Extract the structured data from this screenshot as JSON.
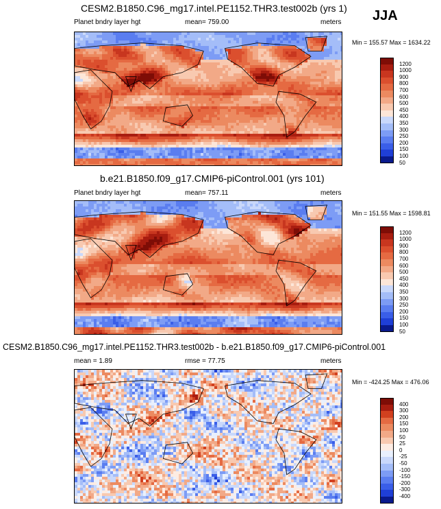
{
  "season": "JJA",
  "colors": {
    "abs_scale": [
      "#0a1a8c",
      "#1f3fd6",
      "#3a5ee8",
      "#5a7df0",
      "#7d9cf5",
      "#a4bdf8",
      "#c9d8fb",
      "#fde6d8",
      "#f8c9b0",
      "#f2a987",
      "#ec8a60",
      "#e56a42",
      "#db4f2e",
      "#c8361f",
      "#a81d10",
      "#7e0d06"
    ],
    "diff_scale": [
      "#0a1a8c",
      "#1f3fd6",
      "#3a5ee8",
      "#5a7df0",
      "#7d9cf5",
      "#a4bdf8",
      "#c9d8fb",
      "#e9f0fd",
      "#fdece3",
      "#f8c9b0",
      "#f2a987",
      "#ec8a60",
      "#e56a42",
      "#d2401f",
      "#a81d10",
      "#7e0d06"
    ],
    "land_outline": "#000000"
  },
  "chart_data": [
    {
      "type": "heatmap",
      "title": "CESM2.B1850.C96_mg17.intel.PE1152.THR3.test002b (yrs 1)",
      "variable": "Planet bndry layer hgt",
      "mean_text": "mean= 759.00",
      "units": "meters",
      "minmax_text": "Min = 155.57 Max = 1634.22",
      "min": 155.57,
      "max": 1634.22,
      "mean": 759.0,
      "colorbar_levels": [
        "1200",
        "1000",
        "900",
        "800",
        "700",
        "600",
        "500",
        "450",
        "400",
        "350",
        "300",
        "250",
        "200",
        "150",
        "100",
        "50"
      ]
    },
    {
      "type": "heatmap",
      "title": "b.e21.B1850.f09_g17.CMIP6-piControl.001 (yrs 101)",
      "variable": "Planet bndry layer hgt",
      "mean_text": "mean= 757.11",
      "units": "meters",
      "minmax_text": "Min = 151.55 Max = 1598.81",
      "min": 151.55,
      "max": 1598.81,
      "mean": 757.11,
      "colorbar_levels": [
        "1200",
        "1000",
        "900",
        "800",
        "700",
        "600",
        "500",
        "450",
        "400",
        "350",
        "300",
        "250",
        "200",
        "150",
        "100",
        "50"
      ]
    },
    {
      "type": "heatmap",
      "title": "CESM2.B1850.C96_mg17.intel.PE1152.THR3.test002b - b.e21.B1850.f09_g17.CMIP6-piControl.001",
      "mean_text": "mean =   1.89",
      "rmse_text": "rmse =  77.75",
      "units": "meters",
      "minmax_text": "Min = -424.25 Max = 476.06",
      "min": -424.25,
      "max": 476.06,
      "mean": 1.89,
      "rmse": 77.75,
      "colorbar_levels": [
        "400",
        "300",
        "200",
        "150",
        "100",
        "50",
        "25",
        "0",
        "-25",
        "-50",
        "-100",
        "-150",
        "-200",
        "-300",
        "-400"
      ]
    }
  ]
}
